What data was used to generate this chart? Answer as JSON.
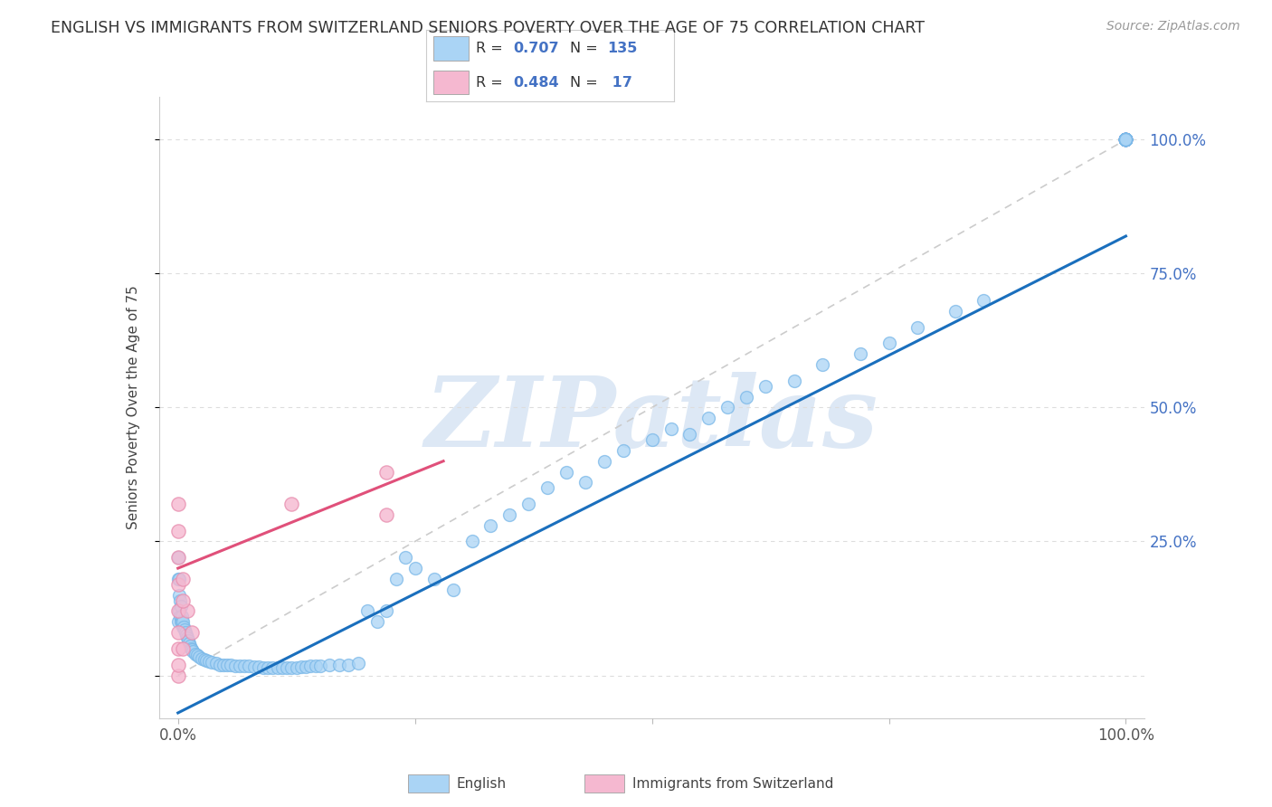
{
  "title": "ENGLISH VS IMMIGRANTS FROM SWITZERLAND SENIORS POVERTY OVER THE AGE OF 75 CORRELATION CHART",
  "source": "Source: ZipAtlas.com",
  "ylabel": "Seniors Poverty Over the Age of 75",
  "legend_english": "English",
  "legend_swiss": "Immigrants from Switzerland",
  "R_english": 0.707,
  "N_english": 135,
  "R_swiss": 0.484,
  "N_swiss": 17,
  "english_color": "#aad4f5",
  "english_edge_color": "#7ab8e8",
  "swiss_color": "#f5b8d0",
  "swiss_edge_color": "#e890b0",
  "english_line_color": "#1a6fbd",
  "swiss_line_color": "#e0507a",
  "ref_line_color": "#cccccc",
  "watermark_color": "#dde8f5",
  "background_color": "#ffffff",
  "grid_color": "#dddddd",
  "right_label_color": "#4472c4",
  "xtick_label_color": "#555555",
  "title_color": "#333333",
  "source_color": "#999999",
  "ylabel_color": "#444444",
  "xlim": [
    -0.02,
    1.02
  ],
  "ylim": [
    -0.08,
    1.08
  ],
  "english_line_x": [
    0.0,
    1.0
  ],
  "english_line_y": [
    -0.07,
    0.82
  ],
  "swiss_line_x": [
    0.0,
    0.28
  ],
  "swiss_line_y": [
    0.2,
    0.4
  ],
  "ref_line_x": [
    0.0,
    1.0
  ],
  "ref_line_y": [
    0.0,
    1.0
  ],
  "english_x": [
    0.0,
    0.0,
    0.0,
    0.001,
    0.001,
    0.001,
    0.002,
    0.002,
    0.003,
    0.003,
    0.004,
    0.004,
    0.005,
    0.005,
    0.006,
    0.007,
    0.008,
    0.009,
    0.01,
    0.011,
    0.012,
    0.013,
    0.014,
    0.015,
    0.016,
    0.018,
    0.02,
    0.022,
    0.025,
    0.028,
    0.03,
    0.033,
    0.036,
    0.04,
    0.044,
    0.048,
    0.052,
    0.056,
    0.06,
    0.065,
    0.07,
    0.075,
    0.08,
    0.085,
    0.09,
    0.095,
    0.1,
    0.105,
    0.11,
    0.115,
    0.12,
    0.125,
    0.13,
    0.135,
    0.14,
    0.145,
    0.15,
    0.16,
    0.17,
    0.18,
    0.19,
    0.2,
    0.21,
    0.22,
    0.23,
    0.24,
    0.25,
    0.27,
    0.29,
    0.31,
    0.33,
    0.35,
    0.37,
    0.39,
    0.41,
    0.43,
    0.45,
    0.47,
    0.5,
    0.52,
    0.54,
    0.56,
    0.58,
    0.6,
    0.62,
    0.65,
    0.68,
    0.72,
    0.75,
    0.78,
    0.82,
    0.85,
    1.0,
    1.0,
    1.0,
    1.0,
    1.0,
    1.0,
    1.0,
    1.0,
    1.0,
    1.0,
    1.0,
    1.0,
    1.0,
    1.0,
    1.0,
    1.0,
    1.0,
    1.0,
    1.0,
    1.0,
    1.0,
    1.0,
    1.0,
    1.0,
    1.0,
    1.0,
    1.0,
    1.0,
    1.0,
    1.0,
    1.0,
    1.0,
    1.0,
    1.0,
    1.0,
    1.0,
    1.0,
    1.0,
    1.0,
    1.0,
    1.0,
    1.0,
    1.0
  ],
  "english_y": [
    0.18,
    0.22,
    0.1,
    0.15,
    0.18,
    0.12,
    0.11,
    0.14,
    0.1,
    0.13,
    0.1,
    0.11,
    0.09,
    0.1,
    0.09,
    0.085,
    0.08,
    0.075,
    0.07,
    0.065,
    0.06,
    0.055,
    0.05,
    0.048,
    0.045,
    0.04,
    0.038,
    0.035,
    0.032,
    0.03,
    0.028,
    0.026,
    0.024,
    0.022,
    0.02,
    0.02,
    0.02,
    0.019,
    0.018,
    0.018,
    0.017,
    0.017,
    0.016,
    0.016,
    0.015,
    0.015,
    0.015,
    0.015,
    0.015,
    0.015,
    0.015,
    0.015,
    0.016,
    0.016,
    0.017,
    0.017,
    0.018,
    0.019,
    0.02,
    0.02,
    0.022,
    0.12,
    0.1,
    0.12,
    0.18,
    0.22,
    0.2,
    0.18,
    0.16,
    0.25,
    0.28,
    0.3,
    0.32,
    0.35,
    0.38,
    0.36,
    0.4,
    0.42,
    0.44,
    0.46,
    0.45,
    0.48,
    0.5,
    0.52,
    0.54,
    0.55,
    0.58,
    0.6,
    0.62,
    0.65,
    0.68,
    0.7,
    1.0,
    1.0,
    1.0,
    1.0,
    1.0,
    1.0,
    1.0,
    1.0,
    1.0,
    1.0,
    1.0,
    1.0,
    1.0,
    1.0,
    1.0,
    1.0,
    1.0,
    1.0,
    1.0,
    1.0,
    1.0,
    1.0,
    1.0,
    1.0,
    1.0,
    1.0,
    1.0,
    1.0,
    1.0,
    1.0,
    1.0,
    1.0,
    1.0,
    1.0,
    1.0,
    1.0,
    1.0,
    1.0,
    1.0,
    1.0,
    1.0,
    1.0,
    1.0
  ],
  "swiss_x": [
    0.0,
    0.0,
    0.0,
    0.0,
    0.0,
    0.0,
    0.0,
    0.0,
    0.0,
    0.005,
    0.005,
    0.01,
    0.015,
    0.12,
    0.22,
    0.22,
    0.005
  ],
  "swiss_y": [
    0.0,
    0.02,
    0.05,
    0.08,
    0.12,
    0.17,
    0.22,
    0.27,
    0.32,
    0.18,
    0.05,
    0.12,
    0.08,
    0.32,
    0.38,
    0.3,
    0.14
  ]
}
